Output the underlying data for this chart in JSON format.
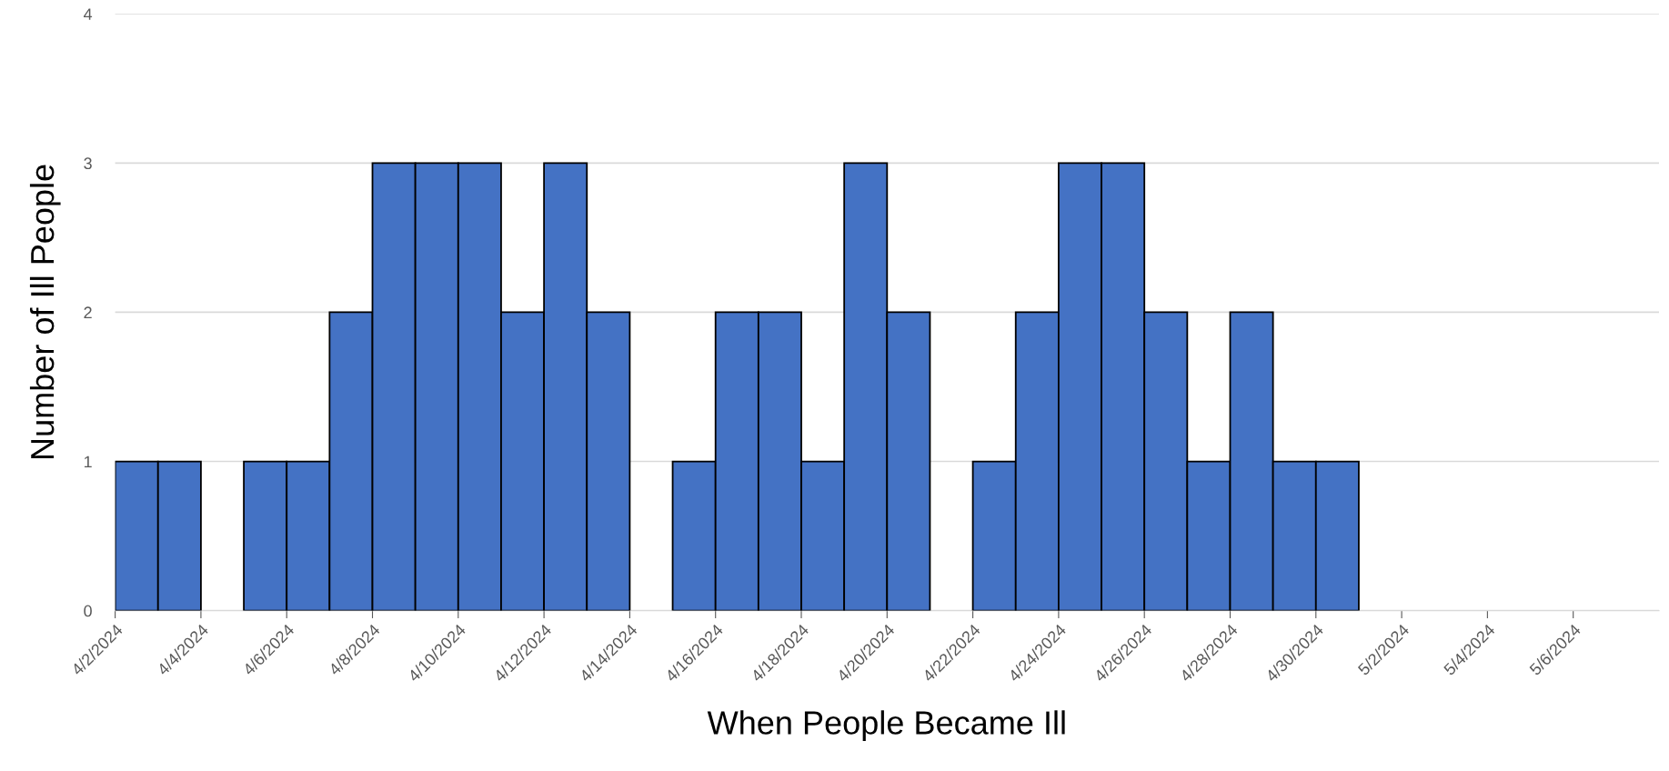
{
  "chart_data": {
    "type": "histogram",
    "xlabel": "When People Became Ill",
    "ylabel": "Number of Ill People",
    "bins": [
      "2024-04-02",
      "2024-04-03",
      "2024-04-04",
      "2024-04-05",
      "2024-04-06",
      "2024-04-07",
      "2024-04-08",
      "2024-04-09",
      "2024-04-10",
      "2024-04-11",
      "2024-04-12",
      "2024-04-13",
      "2024-04-14",
      "2024-04-15",
      "2024-04-16",
      "2024-04-17",
      "2024-04-18",
      "2024-04-19",
      "2024-04-20",
      "2024-04-21",
      "2024-04-22",
      "2024-04-23",
      "2024-04-24",
      "2024-04-25",
      "2024-04-26",
      "2024-04-27",
      "2024-04-28",
      "2024-04-29",
      "2024-04-30",
      "2024-05-01",
      "2024-05-02",
      "2024-05-03",
      "2024-05-04",
      "2024-05-05",
      "2024-05-06",
      "2024-05-07",
      "2024-05-08"
    ],
    "values": [
      1,
      1,
      0,
      1,
      1,
      2,
      3,
      3,
      3,
      2,
      3,
      2,
      0,
      1,
      2,
      2,
      1,
      3,
      2,
      0,
      1,
      2,
      3,
      3,
      2,
      1,
      2,
      1,
      1,
      0,
      0,
      0,
      0,
      0,
      0,
      0
    ],
    "color": "#4472c4",
    "xlim": [
      "2024-04-02",
      "2024-05-08"
    ],
    "xticks": [
      {
        "value": "2024-04-02",
        "label": "4/2/2024"
      },
      {
        "value": "2024-04-04",
        "label": "4/4/2024"
      },
      {
        "value": "2024-04-06",
        "label": "4/6/2024"
      },
      {
        "value": "2024-04-08",
        "label": "4/8/2024"
      },
      {
        "value": "2024-04-10",
        "label": "4/10/2024"
      },
      {
        "value": "2024-04-12",
        "label": "4/12/2024"
      },
      {
        "value": "2024-04-14",
        "label": "4/14/2024"
      },
      {
        "value": "2024-04-16",
        "label": "4/16/2024"
      },
      {
        "value": "2024-04-18",
        "label": "4/18/2024"
      },
      {
        "value": "2024-04-20",
        "label": "4/20/2024"
      },
      {
        "value": "2024-04-22",
        "label": "4/22/2024"
      },
      {
        "value": "2024-04-24",
        "label": "4/24/2024"
      },
      {
        "value": "2024-04-26",
        "label": "4/26/2024"
      },
      {
        "value": "2024-04-28",
        "label": "4/28/2024"
      },
      {
        "value": "2024-04-30",
        "label": "4/30/2024"
      },
      {
        "value": "2024-05-02",
        "label": "5/2/2024"
      },
      {
        "value": "2024-05-04",
        "label": "5/4/2024"
      },
      {
        "value": "2024-05-06",
        "label": "5/6/2024"
      }
    ],
    "ylim": [
      0,
      4
    ],
    "yticks": [
      0,
      1,
      2,
      3,
      4
    ],
    "grid": "y"
  }
}
